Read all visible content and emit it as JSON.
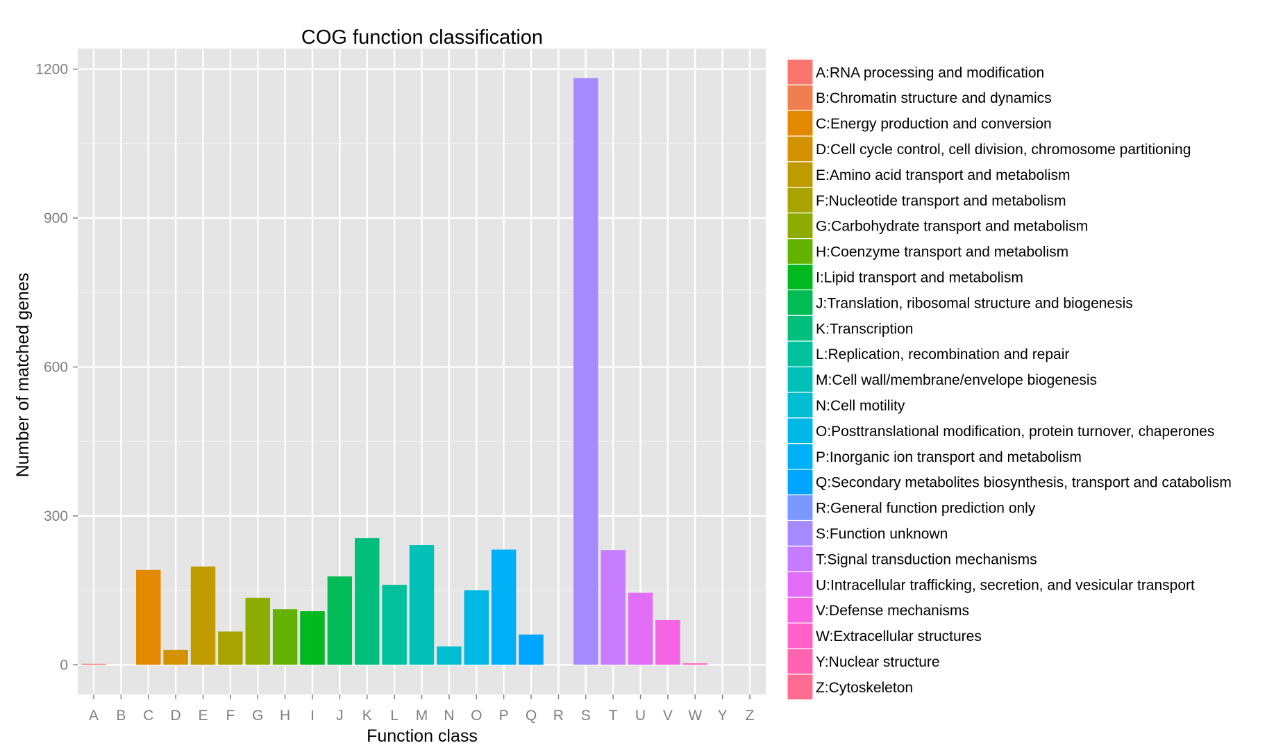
{
  "chart_data": {
    "type": "bar",
    "title": "COG function classification",
    "xlabel": "Function class",
    "ylabel": "Number of matched genes",
    "ylim": [
      -60,
      1250
    ],
    "yticks": [
      0,
      300,
      600,
      900,
      1200
    ],
    "grid": true,
    "legend_position": "right",
    "categories": [
      "A",
      "B",
      "C",
      "D",
      "E",
      "F",
      "G",
      "H",
      "I",
      "J",
      "K",
      "L",
      "M",
      "N",
      "O",
      "P",
      "Q",
      "R",
      "S",
      "T",
      "U",
      "V",
      "W",
      "Y",
      "Z"
    ],
    "values": [
      1,
      0,
      191,
      30,
      198,
      67,
      135,
      112,
      108,
      178,
      255,
      161,
      241,
      37,
      150,
      232,
      61,
      0,
      1182,
      231,
      145,
      90,
      3,
      0,
      0
    ],
    "colors": [
      "#F8766D",
      "#F07F4F",
      "#E38900",
      "#D39200",
      "#BF9B00",
      "#A9A300",
      "#8EAB00",
      "#64B200",
      "#00B81F",
      "#00BC57",
      "#00BF7D",
      "#00C19C",
      "#00C0B8",
      "#00BDD0",
      "#00B8E5",
      "#00B0F6",
      "#00A5FF",
      "#7C97FF",
      "#A58AFF",
      "#C77CFF",
      "#E26EF7",
      "#F564E3",
      "#FF61C9",
      "#FF64B0",
      "#FF6C91"
    ],
    "legend": [
      "A:RNA processing and modification",
      "B:Chromatin structure and dynamics",
      "C:Energy production and conversion",
      "D:Cell cycle control, cell division, chromosome partitioning",
      "E:Amino acid transport and metabolism",
      "F:Nucleotide transport and metabolism",
      "G:Carbohydrate transport and metabolism",
      "H:Coenzyme transport and metabolism",
      "I:Lipid transport and metabolism",
      "J:Translation, ribosomal structure and biogenesis",
      "K:Transcription",
      "L:Replication, recombination and repair",
      "M:Cell wall/membrane/envelope biogenesis",
      "N:Cell motility",
      "O:Posttranslational modification, protein turnover, chaperones",
      "P:Inorganic ion transport and metabolism",
      "Q:Secondary metabolites biosynthesis, transport and catabolism",
      "R:General function prediction only",
      "S:Function unknown",
      "T:Signal transduction mechanisms",
      "U:Intracellular trafficking, secretion, and vesicular transport",
      "V:Defense mechanisms",
      "W:Extracellular structures",
      "Y:Nuclear structure",
      "Z:Cytoskeleton"
    ]
  }
}
